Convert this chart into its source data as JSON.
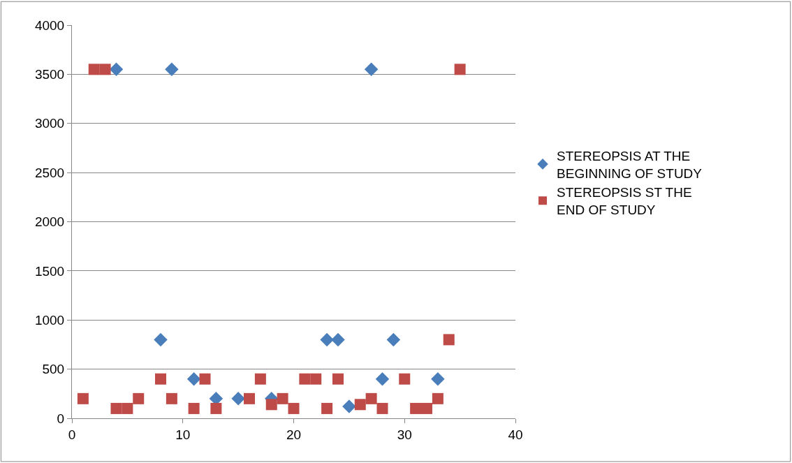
{
  "chart_data": {
    "type": "scatter",
    "xlim": [
      0,
      40
    ],
    "xticks": [
      0,
      10,
      20,
      30,
      40
    ],
    "ylim": [
      0,
      4000
    ],
    "yticks": [
      0,
      500,
      1000,
      1500,
      2000,
      2500,
      3000,
      3500,
      4000
    ],
    "grid": "y",
    "legend": "right",
    "series": [
      {
        "name": "STEREOPSIS AT THE BEGINNING OF STUDY",
        "color": "#4a7ebb",
        "marker": "diamond",
        "x": [
          4,
          8,
          9,
          11,
          13,
          15,
          18,
          23,
          24,
          25,
          27,
          28,
          29,
          33
        ],
        "values": [
          3550,
          800,
          3550,
          400,
          200,
          200,
          200,
          800,
          800,
          120,
          3550,
          400,
          800,
          400
        ]
      },
      {
        "name": "STEREOPSIS ST THE END OF STUDY",
        "color": "#be4b48",
        "marker": "square",
        "x": [
          1,
          2,
          3,
          4,
          5,
          6,
          8,
          9,
          11,
          12,
          13,
          16,
          17,
          18,
          19,
          20,
          21,
          22,
          23,
          24,
          26,
          27,
          28,
          30,
          31,
          32,
          33,
          34,
          35
        ],
        "values": [
          200,
          3550,
          3550,
          100,
          100,
          200,
          400,
          200,
          100,
          400,
          100,
          200,
          400,
          140,
          200,
          100,
          400,
          400,
          100,
          400,
          140,
          200,
          100,
          400,
          100,
          100,
          200,
          800,
          3550
        ]
      }
    ]
  }
}
